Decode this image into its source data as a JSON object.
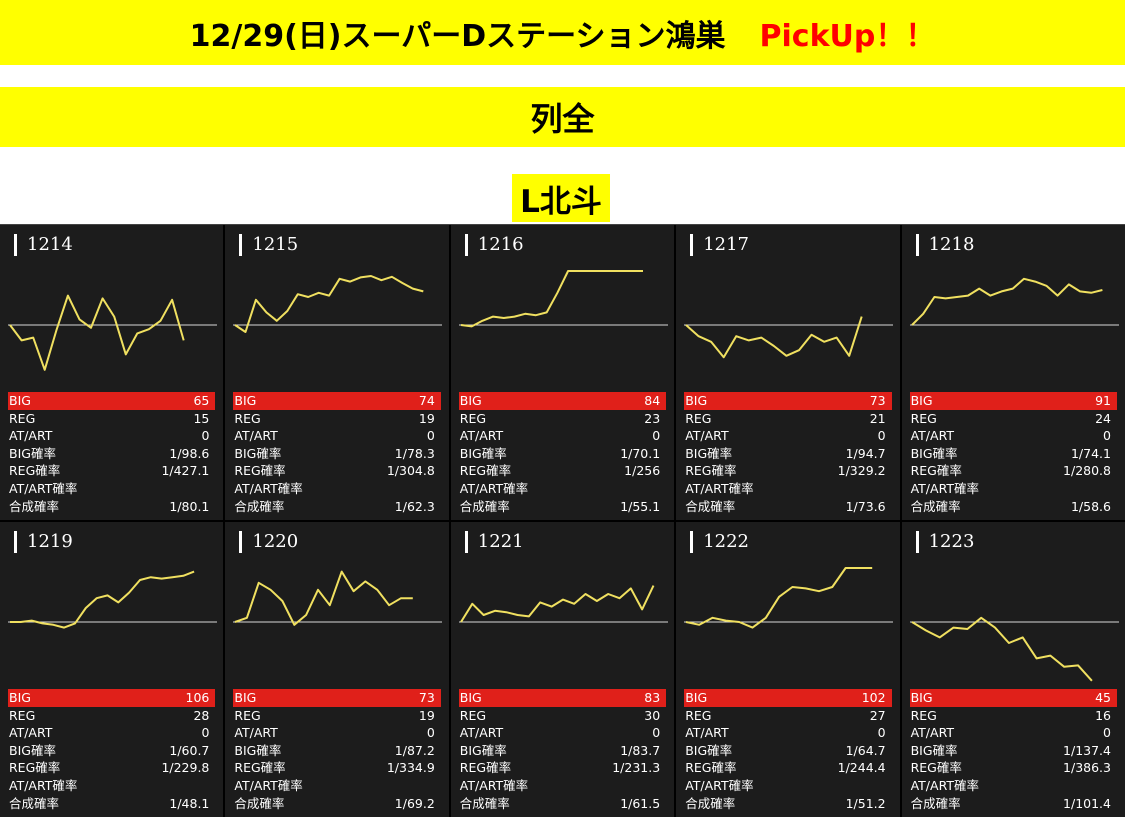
{
  "header": {
    "title": "12/29(日)スーパーDステーション鴻巣",
    "pickup": "PickUp！！",
    "row_label": "列全",
    "machine_label": "L北斗"
  },
  "colors": {
    "banner": "#ffff00",
    "pickup": "#ff0000",
    "big_bar": "#e0201a",
    "graph_line": "#f0e060",
    "card_bg": "#1c1c1c"
  },
  "stat_labels": {
    "big": "BIG",
    "reg": "REG",
    "at": "AT/ART",
    "big_rate": "BIG確率",
    "reg_rate": "REG確率",
    "at_rate": "AT/ART確率",
    "combined": "合成確率"
  },
  "machines": [
    {
      "no": "1214",
      "big": "65",
      "reg": "15",
      "at": "0",
      "big_rate": "1/98.6",
      "reg_rate": "1/427.1",
      "at_rate": "",
      "combined": "1/80.1",
      "trend": [
        0,
        -0.55,
        -0.45,
        -1.6,
        -0.2,
        1.05,
        0.2,
        -0.1,
        0.95,
        0.3,
        -1.05,
        -0.3,
        -0.15,
        0.15,
        0.9,
        -0.55
      ]
    },
    {
      "no": "1215",
      "big": "74",
      "reg": "19",
      "at": "0",
      "big_rate": "1/78.3",
      "reg_rate": "1/304.8",
      "at_rate": "",
      "combined": "1/62.3",
      "trend": [
        0,
        -0.25,
        0.9,
        0.45,
        0.15,
        0.5,
        1.1,
        1.0,
        1.15,
        1.05,
        1.65,
        1.55,
        1.7,
        1.75,
        1.6,
        1.72,
        1.5,
        1.3,
        1.2
      ]
    },
    {
      "no": "1216",
      "big": "84",
      "reg": "23",
      "at": "0",
      "big_rate": "1/70.1",
      "reg_rate": "1/256",
      "at_rate": "",
      "combined": "1/55.1",
      "trend": [
        0,
        -0.05,
        0.15,
        0.3,
        0.25,
        0.3,
        0.4,
        0.35,
        0.45,
        1.15,
        1.95,
        2.05,
        2.0,
        2.05,
        2.1,
        2.05,
        2.1,
        1.95
      ]
    },
    {
      "no": "1217",
      "big": "73",
      "reg": "21",
      "at": "0",
      "big_rate": "1/94.7",
      "reg_rate": "1/329.2",
      "at_rate": "",
      "combined": "1/73.6",
      "trend": [
        0,
        -0.4,
        -0.6,
        -1.15,
        -0.4,
        -0.55,
        -0.45,
        -0.75,
        -1.1,
        -0.9,
        -0.35,
        -0.6,
        -0.45,
        -1.1,
        0.3
      ]
    },
    {
      "no": "1218",
      "big": "91",
      "reg": "24",
      "at": "0",
      "big_rate": "1/74.1",
      "reg_rate": "1/280.8",
      "at_rate": "",
      "combined": "1/58.6",
      "trend": [
        0,
        0.4,
        1.0,
        0.95,
        1.0,
        1.05,
        1.3,
        1.05,
        1.2,
        1.3,
        1.65,
        1.55,
        1.4,
        1.05,
        1.45,
        1.2,
        1.15,
        1.25
      ]
    },
    {
      "no": "1219",
      "big": "106",
      "reg": "28",
      "at": "0",
      "big_rate": "1/60.7",
      "reg_rate": "1/229.8",
      "at_rate": "",
      "combined": "1/48.1",
      "trend": [
        0,
        0,
        0.05,
        -0.05,
        -0.1,
        -0.2,
        -0.05,
        0.5,
        0.85,
        0.95,
        0.7,
        1.05,
        1.5,
        1.6,
        1.55,
        1.6,
        1.65,
        1.8
      ]
    },
    {
      "no": "1220",
      "big": "73",
      "reg": "19",
      "at": "0",
      "big_rate": "1/87.2",
      "reg_rate": "1/334.9",
      "at_rate": "",
      "combined": "1/69.2",
      "trend": [
        0,
        0.15,
        1.4,
        1.15,
        0.75,
        -0.1,
        0.25,
        1.15,
        0.6,
        1.8,
        1.1,
        1.45,
        1.15,
        0.6,
        0.85,
        0.85
      ]
    },
    {
      "no": "1221",
      "big": "83",
      "reg": "30",
      "at": "0",
      "big_rate": "1/83.7",
      "reg_rate": "1/231.3",
      "at_rate": "",
      "combined": "1/61.5",
      "trend": [
        0,
        0.65,
        0.25,
        0.4,
        0.35,
        0.25,
        0.2,
        0.7,
        0.55,
        0.8,
        0.65,
        1.0,
        0.75,
        1.0,
        0.85,
        1.2,
        0.45,
        1.3
      ]
    },
    {
      "no": "1222",
      "big": "102",
      "reg": "27",
      "at": "0",
      "big_rate": "1/64.7",
      "reg_rate": "1/244.4",
      "at_rate": "",
      "combined": "1/51.2",
      "trend": [
        0,
        -0.1,
        0.15,
        0.05,
        0,
        -0.2,
        0.15,
        0.9,
        1.25,
        1.2,
        1.1,
        1.25,
        2.05,
        2.05,
        2.1
      ]
    },
    {
      "no": "1223",
      "big": "45",
      "reg": "16",
      "at": "0",
      "big_rate": "1/137.4",
      "reg_rate": "1/386.3",
      "at_rate": "",
      "combined": "1/101.4",
      "trend": [
        0,
        -0.3,
        -0.55,
        -0.2,
        -0.25,
        0.15,
        -0.2,
        -0.75,
        -0.55,
        -1.3,
        -1.2,
        -1.6,
        -1.55,
        -2.1
      ]
    }
  ]
}
